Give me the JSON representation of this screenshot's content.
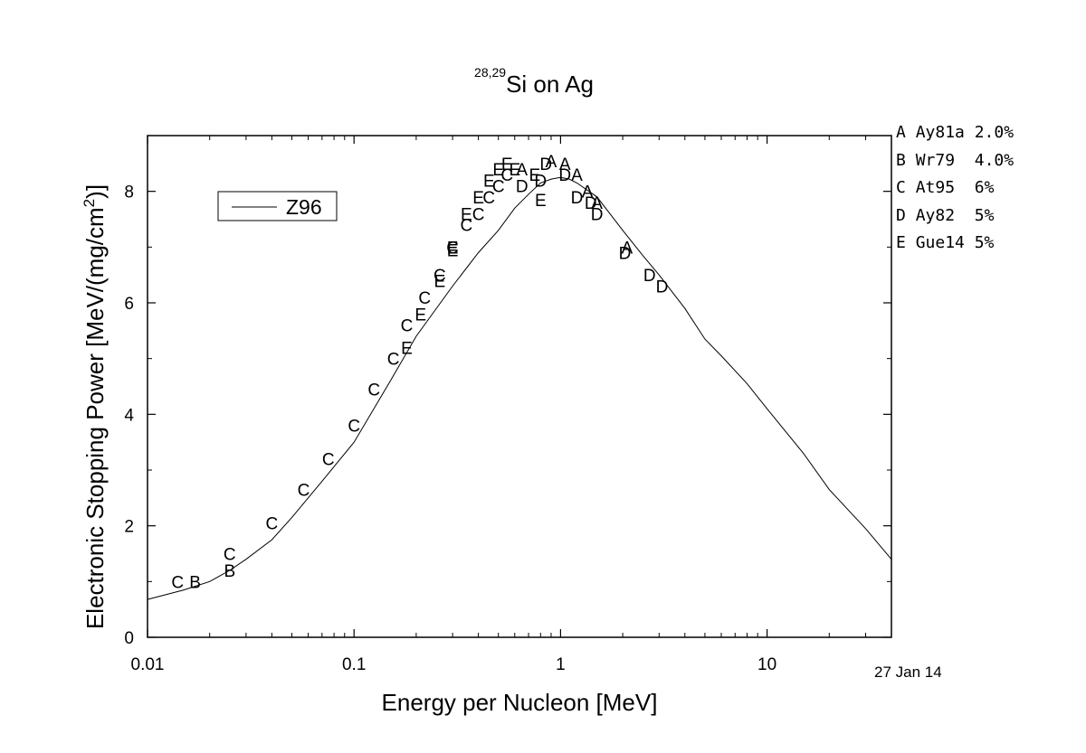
{
  "title": {
    "superscript": "28,29",
    "text": "Si on Ag"
  },
  "date_stamp": "27 Jan 14",
  "reference_legend": [
    {
      "marker": "A",
      "ref": "Ay81a",
      "uncertainty": "2.0%"
    },
    {
      "marker": "B",
      "ref": "Wr79",
      "uncertainty": "4.0%"
    },
    {
      "marker": "C",
      "ref": "At95",
      "uncertainty": "6%"
    },
    {
      "marker": "D",
      "ref": "Ay82",
      "uncertainty": "5%"
    },
    {
      "marker": "E",
      "ref": "Gue14",
      "uncertainty": "5%"
    }
  ],
  "chart_data": {
    "type": "scatter",
    "title": "28,29Si on Ag",
    "xlabel": "Energy per Nucleon [MeV]",
    "ylabel": "Electronic Stopping Power [MeV/(mg/cm2)]",
    "xscale": "log",
    "xlim": [
      0.01,
      40
    ],
    "ylim": [
      0,
      9
    ],
    "x_ticks": [
      0.01,
      0.1,
      1,
      10
    ],
    "x_tick_labels": [
      "0.01",
      "0.1",
      "1",
      "10"
    ],
    "y_ticks": [
      0,
      2,
      4,
      6,
      8
    ],
    "y_tick_labels": [
      "0",
      "2",
      "4",
      "6",
      "8"
    ],
    "grid": false,
    "legend": {
      "position": "top-left",
      "entries": [
        "Z96"
      ]
    },
    "curve": {
      "name": "Z96",
      "x": [
        0.01,
        0.015,
        0.02,
        0.025,
        0.03,
        0.04,
        0.05,
        0.07,
        0.1,
        0.15,
        0.2,
        0.3,
        0.4,
        0.5,
        0.6,
        0.7,
        0.8,
        0.9,
        1.0,
        1.1,
        1.2,
        1.5,
        2.0,
        2.5,
        3.0,
        4.0,
        5.0,
        6.0,
        8.0,
        10,
        15,
        20,
        30,
        40
      ],
      "y": [
        0.68,
        0.85,
        1.0,
        1.2,
        1.4,
        1.75,
        2.15,
        2.8,
        3.5,
        4.6,
        5.4,
        6.3,
        6.9,
        7.3,
        7.7,
        7.95,
        8.15,
        8.22,
        8.25,
        8.22,
        8.15,
        7.9,
        7.3,
        6.85,
        6.5,
        5.9,
        5.35,
        5.05,
        4.55,
        4.1,
        3.3,
        2.65,
        1.95,
        1.4
      ]
    },
    "series": [
      {
        "name": "A",
        "x": [
          0.65,
          0.9,
          1.05,
          1.2,
          1.35,
          1.5,
          2.1
        ],
        "y": [
          8.4,
          8.55,
          8.5,
          8.3,
          8.0,
          7.8,
          7.0
        ]
      },
      {
        "name": "B",
        "x": [
          0.017,
          0.025
        ],
        "y": [
          1.0,
          1.2
        ]
      },
      {
        "name": "C",
        "x": [
          0.014,
          0.025,
          0.04,
          0.057,
          0.075,
          0.1,
          0.125,
          0.155,
          0.18,
          0.22,
          0.26,
          0.3,
          0.35,
          0.4,
          0.45,
          0.5,
          0.55
        ],
        "y": [
          1.0,
          1.5,
          2.05,
          2.65,
          3.2,
          3.8,
          4.45,
          5.0,
          5.6,
          6.1,
          6.5,
          7.0,
          7.4,
          7.6,
          7.9,
          8.1,
          8.3
        ]
      },
      {
        "name": "D",
        "x": [
          0.65,
          0.8,
          0.85,
          1.05,
          1.2,
          1.4,
          1.5,
          2.05,
          2.7,
          3.1
        ],
        "y": [
          8.1,
          8.2,
          8.5,
          8.3,
          7.9,
          7.8,
          7.6,
          6.9,
          6.5,
          6.3
        ]
      },
      {
        "name": "E",
        "x": [
          0.3,
          0.35,
          0.4,
          0.45,
          0.5,
          0.55,
          0.6,
          0.75,
          0.8,
          0.26,
          0.21,
          0.18,
          0.3
        ],
        "y": [
          6.95,
          7.6,
          7.9,
          8.2,
          8.4,
          8.5,
          8.4,
          8.3,
          7.85,
          6.4,
          5.8,
          5.2,
          7.0
        ]
      }
    ]
  }
}
